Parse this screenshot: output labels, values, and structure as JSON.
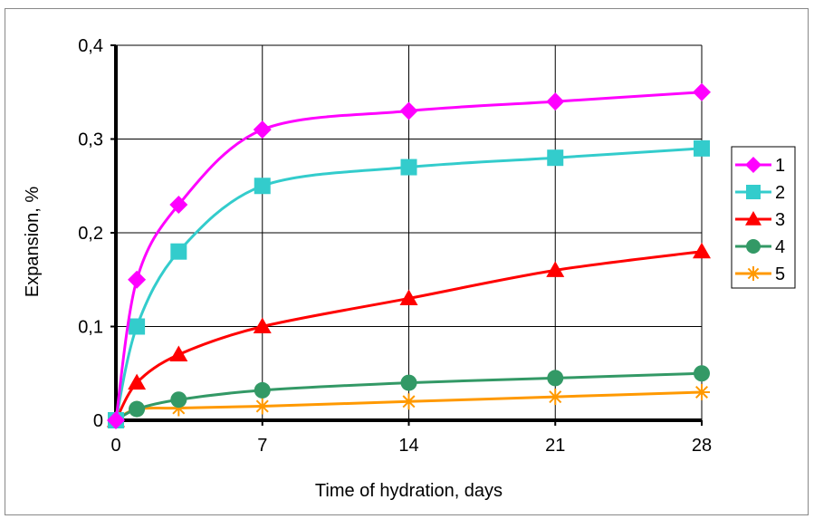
{
  "chart_data": {
    "type": "line",
    "xlabel": "Time of hydration, days",
    "ylabel": "Expansion, %",
    "xlim": [
      0,
      28
    ],
    "ylim": [
      0,
      0.4
    ],
    "x_ticks": [
      0,
      7,
      14,
      21,
      28
    ],
    "x_tick_labels": [
      "0",
      "7",
      "14",
      "21",
      "28"
    ],
    "y_ticks": [
      0,
      0.1,
      0.2,
      0.3,
      0.4
    ],
    "y_tick_labels": [
      "0",
      "0,1",
      "0,2",
      "0,3",
      "0,4"
    ],
    "grid": true,
    "legend_position": "right",
    "series": [
      {
        "name": "1",
        "color": "#FF00FF",
        "marker": "diamond",
        "x": [
          0,
          1,
          3,
          7,
          14,
          21,
          28
        ],
        "y": [
          0,
          0.15,
          0.23,
          0.31,
          0.33,
          0.34,
          0.35
        ]
      },
      {
        "name": "2",
        "color": "#33CCCC",
        "marker": "square",
        "x": [
          0,
          1,
          3,
          7,
          14,
          21,
          28
        ],
        "y": [
          0,
          0.1,
          0.18,
          0.25,
          0.27,
          0.28,
          0.29
        ]
      },
      {
        "name": "3",
        "color": "#FF0000",
        "marker": "triangle",
        "x": [
          0,
          1,
          3,
          7,
          14,
          21,
          28
        ],
        "y": [
          0,
          0.04,
          0.07,
          0.1,
          0.13,
          0.16,
          0.18
        ]
      },
      {
        "name": "4",
        "color": "#339966",
        "marker": "circle",
        "x": [
          0,
          1,
          3,
          7,
          14,
          21,
          28
        ],
        "y": [
          0,
          0.012,
          0.022,
          0.032,
          0.04,
          0.045,
          0.05
        ]
      },
      {
        "name": "5",
        "color": "#FF9900",
        "marker": "asterisk",
        "x": [
          0,
          1,
          3,
          7,
          14,
          21,
          28
        ],
        "y": [
          0,
          0.012,
          0.013,
          0.015,
          0.02,
          0.025,
          0.03
        ]
      }
    ]
  }
}
